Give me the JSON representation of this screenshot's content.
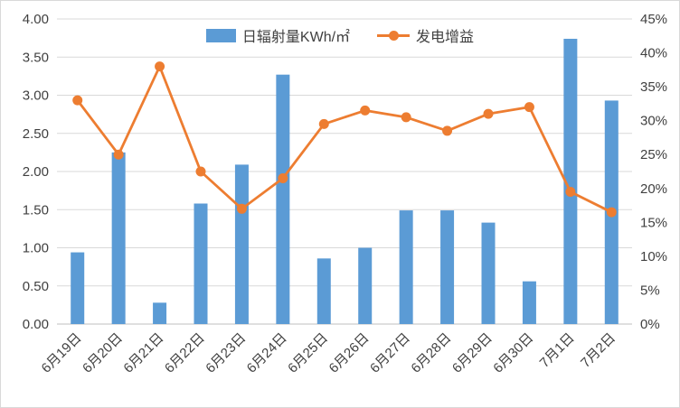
{
  "chart_data": {
    "type": "bar+line combo",
    "title": "",
    "categories": [
      "6月19日",
      "6月20日",
      "6月21日",
      "6月22日",
      "6月23日",
      "6月24日",
      "6月25日",
      "6月26日",
      "6月27日",
      "6月28日",
      "6月29日",
      "6月30日",
      "7月1日",
      "7月2日"
    ],
    "series": [
      {
        "name": "日辐射量KWh/㎡",
        "type": "bar",
        "axis": "left",
        "color": "#5B9BD5",
        "values": [
          0.94,
          2.25,
          0.28,
          1.58,
          2.09,
          3.27,
          0.86,
          1.0,
          1.49,
          1.49,
          1.33,
          0.56,
          3.74,
          2.93
        ]
      },
      {
        "name": "发电增益",
        "type": "line",
        "axis": "right",
        "color": "#ED7D31",
        "values_percent": [
          33,
          25,
          38,
          22.5,
          17,
          21.5,
          29.5,
          31.5,
          30.5,
          28.5,
          31,
          32,
          19.5,
          16.5
        ]
      }
    ],
    "left_axis": {
      "min": 0,
      "max": 4,
      "step": 0.5,
      "ticks": [
        "4.00",
        "3.50",
        "3.00",
        "2.50",
        "2.00",
        "1.50",
        "1.00",
        "0.50",
        "0.00"
      ]
    },
    "right_axis": {
      "min": 0,
      "max": 45,
      "step": 5,
      "ticks": [
        "45%",
        "40%",
        "35%",
        "30%",
        "25%",
        "20%",
        "15%",
        "10%",
        "5%",
        "0%"
      ]
    },
    "grid": true,
    "legend_position": "top-center",
    "colors": {
      "gridline": "#D9D9D9",
      "axis_line": "#BFBFBF",
      "tick_text": "#404040"
    }
  }
}
